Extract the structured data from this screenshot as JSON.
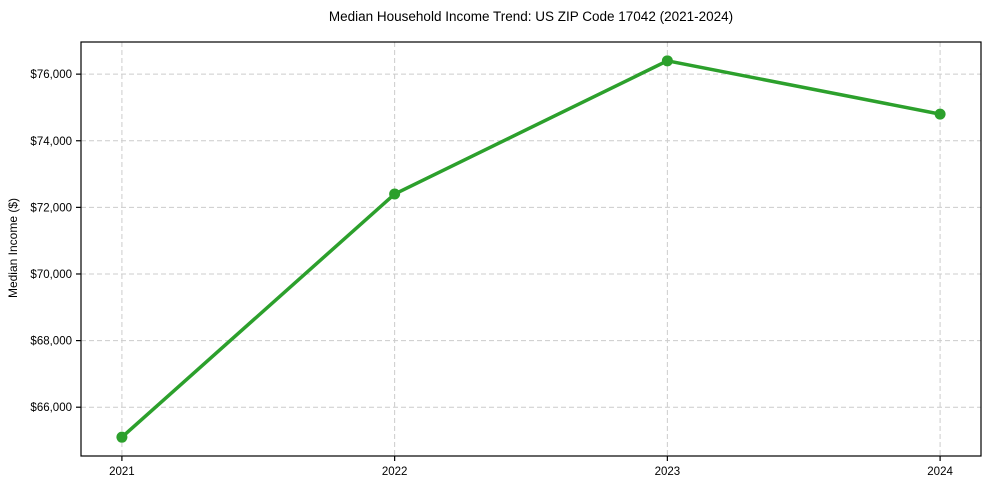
{
  "chart_data": {
    "type": "line",
    "title": "Median Household Income Trend: US ZIP Code 17042 (2021-2024)",
    "xlabel": "",
    "ylabel": "Median Income ($)",
    "categories": [
      "2021",
      "2022",
      "2023",
      "2024"
    ],
    "x": [
      2021,
      2022,
      2023,
      2024
    ],
    "series": [
      {
        "name": "Median Household Income",
        "values": [
          65100,
          72400,
          76400,
          74800
        ]
      }
    ],
    "yticks": [
      66000,
      68000,
      70000,
      72000,
      74000,
      76000
    ],
    "ytick_labels": [
      "$66,000",
      "$68,000",
      "$70,000",
      "$72,000",
      "$74,000",
      "$76,000"
    ],
    "xlim": [
      2020.85,
      2024.15
    ],
    "ylim": [
      64535,
      76965
    ],
    "grid": true,
    "grid_style": "dashed",
    "grid_color": "#cccccc",
    "line_color": "#2ca02c",
    "marker": "circle",
    "frame_color": "#000000",
    "background_color": "#ffffff",
    "legend": "none"
  }
}
